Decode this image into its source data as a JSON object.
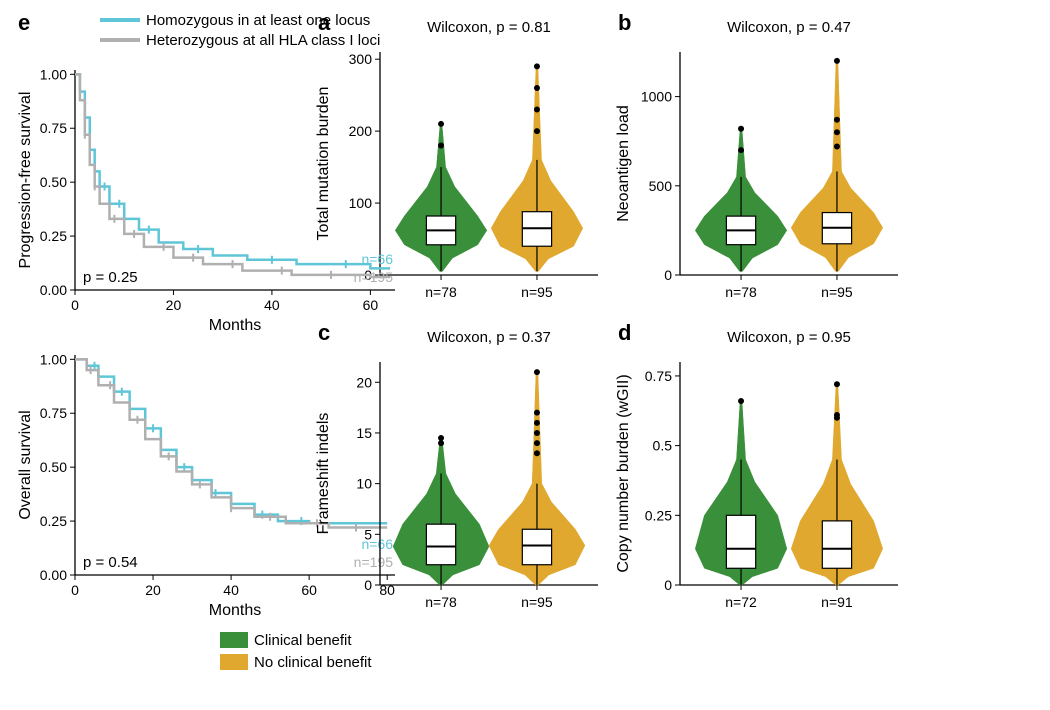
{
  "colors": {
    "benefit": "#3a8f3a",
    "no_benefit": "#e0a82e",
    "box_fill": "#ffffff",
    "box_stroke": "#000000",
    "axis": "#000000",
    "text": "#000000",
    "curve_homo": "#5fc6d8",
    "curve_hetero": "#b0b0b0"
  },
  "fonts": {
    "panel_label_size": 22,
    "axis_label_size": 16,
    "tick_size": 14,
    "stat_size": 15,
    "legend_size": 15
  },
  "panel_a": {
    "label": "a",
    "stat": "Wilcoxon, p = 0.81",
    "ylabel": "Total mutation burden",
    "yticks": [
      0,
      100,
      200,
      300
    ],
    "ylim": [
      0,
      310
    ],
    "xticks": [
      "n=78",
      "n=95"
    ],
    "violins": [
      {
        "color_key": "benefit",
        "median": 62,
        "q1": 42,
        "q3": 82,
        "whisk_lo": 5,
        "whisk_hi": 150,
        "outliers": [
          180,
          210
        ],
        "max_width": 0.42,
        "shape": "bulge"
      },
      {
        "color_key": "no_benefit",
        "median": 65,
        "q1": 40,
        "q3": 88,
        "whisk_lo": 5,
        "whisk_hi": 160,
        "outliers": [
          200,
          230,
          260,
          290
        ],
        "max_width": 0.42,
        "shape": "bulge"
      }
    ]
  },
  "panel_b": {
    "label": "b",
    "stat": "Wilcoxon, p = 0.47",
    "ylabel": "Neoantigen load",
    "yticks": [
      0,
      500,
      1000
    ],
    "ylim": [
      0,
      1250
    ],
    "xticks": [
      "n=78",
      "n=95"
    ],
    "violins": [
      {
        "color_key": "benefit",
        "median": 250,
        "q1": 170,
        "q3": 330,
        "whisk_lo": 20,
        "whisk_hi": 550,
        "outliers": [
          700,
          820
        ],
        "max_width": 0.42,
        "shape": "bulge"
      },
      {
        "color_key": "no_benefit",
        "median": 265,
        "q1": 175,
        "q3": 350,
        "whisk_lo": 20,
        "whisk_hi": 580,
        "outliers": [
          720,
          800,
          870,
          1200
        ],
        "max_width": 0.42,
        "shape": "bulge"
      }
    ]
  },
  "panel_c": {
    "label": "c",
    "stat": "Wilcoxon, p = 0.37",
    "ylabel": "Frameshift indels",
    "yticks": [
      0,
      5,
      10,
      15,
      20
    ],
    "ylim": [
      0,
      22
    ],
    "xticks": [
      "n=78",
      "n=95"
    ],
    "violins": [
      {
        "color_key": "benefit",
        "median": 3.8,
        "q1": 2,
        "q3": 6,
        "whisk_lo": 0,
        "whisk_hi": 11,
        "outliers": [
          14,
          14.5
        ],
        "max_width": 0.44,
        "shape": "bulge"
      },
      {
        "color_key": "no_benefit",
        "median": 3.9,
        "q1": 2,
        "q3": 5.5,
        "whisk_lo": 0,
        "whisk_hi": 10,
        "outliers": [
          13,
          14,
          15,
          16,
          17,
          21
        ],
        "max_width": 0.44,
        "shape": "bulge"
      }
    ]
  },
  "panel_d": {
    "label": "d",
    "stat": "Wilcoxon, p = 0.95",
    "ylabel": "Copy number burden (wGII)",
    "yticks": [
      0,
      0.25,
      0.5,
      0.75
    ],
    "ylim": [
      0,
      0.8
    ],
    "xticks": [
      "n=72",
      "n=91"
    ],
    "violins": [
      {
        "color_key": "benefit",
        "median": 0.13,
        "q1": 0.06,
        "q3": 0.25,
        "whisk_lo": 0,
        "whisk_hi": 0.45,
        "outliers": [
          0.66
        ],
        "max_width": 0.42,
        "shape": "bulge"
      },
      {
        "color_key": "no_benefit",
        "median": 0.13,
        "q1": 0.06,
        "q3": 0.23,
        "whisk_lo": 0,
        "whisk_hi": 0.45,
        "outliers": [
          0.6,
          0.61,
          0.72
        ],
        "max_width": 0.42,
        "shape": "bulge"
      }
    ]
  },
  "panel_e": {
    "label": "e",
    "legend": [
      {
        "color_key": "curve_homo",
        "label": "Homozygous in at least one locus"
      },
      {
        "color_key": "curve_hetero",
        "label": "Heterozygous at all HLA class I loci"
      }
    ],
    "plots": [
      {
        "ylabel": "Progression-free survival",
        "xlabel": "Months",
        "xlim": [
          0,
          65
        ],
        "xticks": [
          0,
          20,
          40,
          60
        ],
        "ylim": [
          0,
          1.02
        ],
        "yticks": [
          0,
          0.25,
          0.5,
          0.75,
          1.0
        ],
        "p_text": "p = 0.25",
        "n_labels": [
          {
            "color_key": "curve_homo",
            "text": "n=66"
          },
          {
            "color_key": "curve_hetero",
            "text": "n=195"
          }
        ],
        "curves": [
          {
            "color_key": "curve_homo",
            "points": [
              [
                0,
                1.0
              ],
              [
                1,
                0.92
              ],
              [
                2,
                0.8
              ],
              [
                3,
                0.65
              ],
              [
                4,
                0.55
              ],
              [
                5,
                0.48
              ],
              [
                7,
                0.4
              ],
              [
                10,
                0.33
              ],
              [
                13,
                0.28
              ],
              [
                17,
                0.22
              ],
              [
                22,
                0.19
              ],
              [
                28,
                0.16
              ],
              [
                35,
                0.14
              ],
              [
                45,
                0.12
              ],
              [
                60,
                0.1
              ],
              [
                64,
                0.1
              ]
            ],
            "ticks": [
              3,
              6,
              9,
              15,
              25,
              40,
              55
            ]
          },
          {
            "color_key": "curve_hetero",
            "points": [
              [
                0,
                1.0
              ],
              [
                1,
                0.88
              ],
              [
                2,
                0.72
              ],
              [
                3,
                0.58
              ],
              [
                4,
                0.48
              ],
              [
                5,
                0.4
              ],
              [
                7,
                0.33
              ],
              [
                10,
                0.26
              ],
              [
                14,
                0.2
              ],
              [
                20,
                0.15
              ],
              [
                26,
                0.12
              ],
              [
                34,
                0.09
              ],
              [
                44,
                0.07
              ],
              [
                60,
                0.06
              ],
              [
                64,
                0.06
              ]
            ],
            "ticks": [
              2,
              4,
              8,
              12,
              18,
              24,
              32,
              42,
              52
            ]
          }
        ]
      },
      {
        "ylabel": "Overall survival",
        "xlabel": "Months",
        "xlim": [
          0,
          82
        ],
        "xticks": [
          0,
          20,
          40,
          60,
          80
        ],
        "ylim": [
          0,
          1.02
        ],
        "yticks": [
          0,
          0.25,
          0.5,
          0.75,
          1.0
        ],
        "p_text": "p = 0.54",
        "n_labels": [
          {
            "color_key": "curve_homo",
            "text": "n=66"
          },
          {
            "color_key": "curve_hetero",
            "text": "n=195"
          }
        ],
        "curves": [
          {
            "color_key": "curve_homo",
            "points": [
              [
                0,
                1.0
              ],
              [
                3,
                0.97
              ],
              [
                6,
                0.92
              ],
              [
                10,
                0.85
              ],
              [
                14,
                0.77
              ],
              [
                18,
                0.68
              ],
              [
                22,
                0.58
              ],
              [
                26,
                0.5
              ],
              [
                30,
                0.44
              ],
              [
                35,
                0.38
              ],
              [
                40,
                0.33
              ],
              [
                46,
                0.28
              ],
              [
                52,
                0.25
              ],
              [
                60,
                0.24
              ],
              [
                80,
                0.24
              ]
            ],
            "ticks": [
              5,
              12,
              20,
              28,
              36,
              48,
              58
            ]
          },
          {
            "color_key": "curve_hetero",
            "points": [
              [
                0,
                1.0
              ],
              [
                3,
                0.95
              ],
              [
                6,
                0.88
              ],
              [
                10,
                0.8
              ],
              [
                14,
                0.72
              ],
              [
                18,
                0.63
              ],
              [
                22,
                0.55
              ],
              [
                26,
                0.48
              ],
              [
                30,
                0.42
              ],
              [
                35,
                0.36
              ],
              [
                40,
                0.31
              ],
              [
                46,
                0.27
              ],
              [
                54,
                0.24
              ],
              [
                65,
                0.22
              ],
              [
                80,
                0.22
              ]
            ],
            "ticks": [
              4,
              9,
              16,
              24,
              32,
              40,
              50,
              62,
              72
            ]
          }
        ]
      }
    ]
  },
  "bottom_legend": [
    {
      "color_key": "benefit",
      "label": "Clinical benefit"
    },
    {
      "color_key": "no_benefit",
      "label": "No clinical benefit"
    }
  ]
}
